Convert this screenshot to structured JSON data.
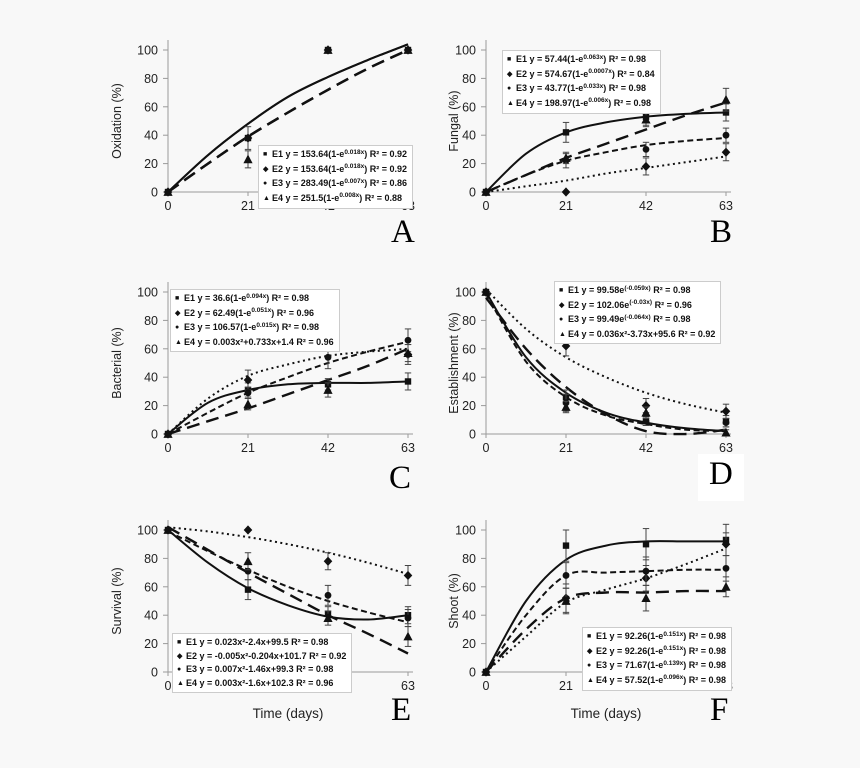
{
  "figure": {
    "x_ticks": [
      0,
      21,
      42,
      63
    ],
    "y_ticks": [
      0,
      20,
      40,
      60,
      80,
      100
    ],
    "curve_x": [
      0,
      10.5,
      21,
      31.5,
      42,
      52.5,
      63
    ],
    "x_axis_label": "Time (days)",
    "line_color": "#111111",
    "axis_color": "#9a9a9a",
    "background": "#f8f8f8",
    "legend_background": "#ffffff"
  },
  "chart_data": [
    {
      "panel": "A",
      "type": "line",
      "ylabel": "Oxidation (%)",
      "xlabel": "",
      "x": [
        0,
        21,
        42,
        63
      ],
      "ylim": [
        0,
        100
      ],
      "series": [
        {
          "label": "E1",
          "marker": "square",
          "line": "solid",
          "eq_pre": "y = 153.64(1-e",
          "eq_sup": "0.018x",
          "eq_post": ") R² = 0.92",
          "values": [
            0,
            38,
            100,
            100
          ],
          "errors": [
            0,
            8,
            0,
            0
          ],
          "curve": [
            0,
            26,
            48,
            67,
            81,
            93,
            104
          ]
        },
        {
          "label": "E2",
          "marker": "diamond",
          "line": "solid",
          "eq_pre": "y = 153.64(1-e",
          "eq_sup": "0.018x",
          "eq_post": ") R² = 0.92",
          "values": [
            0,
            38,
            100,
            100
          ],
          "errors": [
            0,
            0,
            0,
            0
          ],
          "curve": [
            0,
            26,
            48,
            67,
            81,
            93,
            104
          ]
        },
        {
          "label": "E3",
          "marker": "circle",
          "line": "longdash",
          "eq_pre": "y = 283.49(1-e",
          "eq_sup": "0.007x",
          "eq_post": ") R² = 0.86",
          "values": [
            0,
            38,
            100,
            100
          ],
          "errors": [
            0,
            0,
            0,
            0
          ],
          "curve": [
            0,
            20,
            39,
            56,
            72,
            87,
            100
          ]
        },
        {
          "label": "E4",
          "marker": "triangle",
          "line": "longdash",
          "eq_pre": "y = 251.5(1-e",
          "eq_sup": "0.008x",
          "eq_post": ") R² = 0.88",
          "values": [
            0,
            23,
            100,
            100
          ],
          "errors": [
            0,
            6,
            0,
            0
          ],
          "curve": [
            0,
            20,
            39,
            56,
            72,
            87,
            100
          ]
        }
      ]
    },
    {
      "panel": "B",
      "type": "line",
      "ylabel": "Fungal (%)",
      "xlabel": "",
      "x": [
        0,
        21,
        42,
        63
      ],
      "ylim": [
        0,
        100
      ],
      "series": [
        {
          "label": "E1",
          "marker": "square",
          "line": "solid",
          "eq_pre": "y = 57.44(1-e",
          "eq_sup": "0.063x",
          "eq_post": ") R² = 0.98",
          "values": [
            0,
            42,
            53,
            56
          ],
          "errors": [
            0,
            7,
            6,
            6
          ],
          "curve": [
            0,
            27,
            42,
            49,
            53,
            55,
            56
          ]
        },
        {
          "label": "E2",
          "marker": "diamond",
          "line": "dotted",
          "eq_pre": "y = 574.67(1-e",
          "eq_sup": "0.0007x",
          "eq_post": ") R² = 0.84",
          "values": [
            0,
            0,
            18,
            28
          ],
          "errors": [
            0,
            0,
            6,
            6
          ],
          "curve": [
            0,
            4,
            8,
            13,
            17,
            21,
            25
          ]
        },
        {
          "label": "E3",
          "marker": "circle",
          "line": "shortdash",
          "eq_pre": "y = 43.77(1-e",
          "eq_sup": "0.033x",
          "eq_post": ") R² = 0.98",
          "values": [
            0,
            22,
            30,
            40
          ],
          "errors": [
            0,
            5,
            5,
            5
          ],
          "curve": [
            0,
            12,
            22,
            28,
            33,
            36,
            38
          ]
        },
        {
          "label": "E4",
          "marker": "triangle",
          "line": "longdash",
          "eq_pre": "y = 198.97(1-e",
          "eq_sup": "0.006x",
          "eq_post": ") R² = 0.98",
          "values": [
            0,
            24,
            51,
            65
          ],
          "errors": [
            0,
            4,
            5,
            8
          ],
          "curve": [
            0,
            12,
            24,
            34,
            44,
            54,
            63
          ]
        }
      ]
    },
    {
      "panel": "C",
      "type": "line",
      "ylabel": "Bacterial (%)",
      "xlabel": "",
      "x": [
        0,
        21,
        42,
        63
      ],
      "ylim": [
        0,
        100
      ],
      "series": [
        {
          "label": "E1",
          "marker": "square",
          "line": "solid",
          "eq_pre": "y = 36.6(1-e",
          "eq_sup": "0.094x",
          "eq_post": ") R² = 0.98",
          "values": [
            0,
            31,
            35,
            37
          ],
          "errors": [
            0,
            5,
            4,
            6
          ],
          "curve": [
            0,
            22,
            31,
            35,
            36,
            36,
            37
          ]
        },
        {
          "label": "E2",
          "marker": "diamond",
          "line": "dotted",
          "eq_pre": "y = 62.49(1-e",
          "eq_sup": "0.051x",
          "eq_post": ") R² = 0.96",
          "values": [
            0,
            38,
            62,
            56
          ],
          "errors": [
            0,
            7,
            7,
            7
          ],
          "curve": [
            0,
            25,
            41,
            49,
            55,
            58,
            60
          ]
        },
        {
          "label": "E3",
          "marker": "circle",
          "line": "shortdash",
          "eq_pre": "y = 106.57(1-e",
          "eq_sup": "0.015x",
          "eq_post": ") R² = 0.98",
          "values": [
            0,
            29,
            54,
            66
          ],
          "errors": [
            0,
            4,
            8,
            8
          ],
          "curve": [
            0,
            15,
            29,
            40,
            50,
            58,
            65
          ]
        },
        {
          "label": "E4",
          "marker": "triangle",
          "line": "longdash",
          "eq_pre": "y = 0.003x²+0.733x+1.4 R² = 0.96",
          "eq_sup": "",
          "eq_post": "",
          "values": [
            0,
            21,
            31,
            57
          ],
          "errors": [
            0,
            4,
            5,
            6
          ],
          "curve": [
            0,
            9,
            18,
            28,
            38,
            48,
            60
          ]
        }
      ]
    },
    {
      "panel": "D",
      "type": "line",
      "ylabel": "Establishment (%)",
      "xlabel": "",
      "x": [
        0,
        21,
        42,
        63
      ],
      "ylim": [
        0,
        100
      ],
      "series": [
        {
          "label": "E1",
          "marker": "square",
          "line": "solid",
          "eq_pre": "y = 99.58e",
          "eq_sup": "(-0.059x)",
          "eq_post": " R² = 0.98",
          "values": [
            100,
            26,
            9,
            9
          ],
          "errors": [
            0,
            5,
            3,
            4
          ],
          "curve": [
            100,
            54,
            29,
            15,
            8,
            4,
            2
          ]
        },
        {
          "label": "E2",
          "marker": "diamond",
          "line": "dotted",
          "eq_pre": "y = 102.06e",
          "eq_sup": "(-0.03x)",
          "eq_post": " R² = 0.96",
          "values": [
            100,
            62,
            20,
            16
          ],
          "errors": [
            0,
            7,
            5,
            5
          ],
          "curve": [
            102,
            74,
            54,
            40,
            29,
            21,
            15
          ]
        },
        {
          "label": "E3",
          "marker": "circle",
          "line": "shortdash",
          "eq_pre": "y = 99.49e",
          "eq_sup": "(-0.064x)",
          "eq_post": " R² = 0.98",
          "values": [
            100,
            22,
            9,
            8
          ],
          "errors": [
            0,
            6,
            3,
            3
          ],
          "curve": [
            99,
            51,
            26,
            13,
            7,
            3,
            2
          ]
        },
        {
          "label": "E4",
          "marker": "triangle",
          "line": "longdash",
          "eq_pre": "y = 0.036x²-3.73x+95.6 R² = 0.92",
          "eq_sup": "",
          "eq_post": "",
          "values": [
            100,
            19,
            15,
            1
          ],
          "errors": [
            0,
            4,
            4,
            2
          ],
          "curve": [
            96,
            60,
            33,
            14,
            2,
            0,
            3
          ]
        }
      ]
    },
    {
      "panel": "E",
      "type": "line",
      "ylabel": "Survival (%)",
      "xlabel": "Time (days)",
      "x": [
        0,
        21,
        42,
        63
      ],
      "ylim": [
        0,
        100
      ],
      "series": [
        {
          "label": "E1",
          "marker": "square",
          "line": "solid",
          "eq_pre": "y = 0.023x²-2.4x+99.5 R² = 0.98",
          "eq_sup": "",
          "eq_post": "",
          "values": [
            100,
            58,
            41,
            40
          ],
          "errors": [
            0,
            7,
            5,
            6
          ],
          "curve": [
            100,
            77,
            59,
            47,
            39,
            37,
            40
          ]
        },
        {
          "label": "E2",
          "marker": "diamond",
          "line": "dotted",
          "eq_pre": "y = -0.005x²-0.204x+101.7 R² = 0.92",
          "eq_sup": "",
          "eq_post": "",
          "values": [
            100,
            100,
            78,
            68
          ],
          "errors": [
            0,
            0,
            6,
            7
          ],
          "curve": [
            102,
            99,
            95,
            90,
            84,
            77,
            69
          ]
        },
        {
          "label": "E3",
          "marker": "circle",
          "line": "shortdash",
          "eq_pre": "y = 0.007x²-1.46x+99.3 R² = 0.98",
          "eq_sup": "",
          "eq_post": "",
          "values": [
            100,
            71,
            54,
            38
          ],
          "errors": [
            0,
            6,
            7,
            6
          ],
          "curve": [
            99,
            85,
            72,
            60,
            50,
            42,
            35
          ]
        },
        {
          "label": "E4",
          "marker": "triangle",
          "line": "longdash",
          "eq_pre": "y = 0.003x²-1.6x+102.3 R² = 0.96",
          "eq_sup": "",
          "eq_post": "",
          "values": [
            100,
            78,
            38,
            25
          ],
          "errors": [
            0,
            6,
            5,
            7
          ],
          "curve": [
            102,
            86,
            70,
            55,
            40,
            27,
            13
          ]
        }
      ]
    },
    {
      "panel": "F",
      "type": "line",
      "ylabel": "Shoot (%)",
      "xlabel": "Time (days)",
      "x": [
        0,
        21,
        42,
        63
      ],
      "ylim": [
        0,
        100
      ],
      "series": [
        {
          "label": "E1",
          "marker": "square",
          "line": "solid",
          "eq_pre": "y = 92.26(1-e",
          "eq_sup": "0.151x",
          "eq_post": ") R² = 0.98",
          "values": [
            0,
            89,
            90,
            93
          ],
          "errors": [
            0,
            11,
            11,
            11
          ],
          "curve": [
            0,
            50,
            79,
            89,
            92,
            92,
            92
          ]
        },
        {
          "label": "E2",
          "marker": "diamond",
          "line": "dotted",
          "eq_pre": "y = 92.26(1-e",
          "eq_sup": "0.151x",
          "eq_post": ") R² = 0.98",
          "values": [
            0,
            52,
            66,
            90
          ],
          "errors": [
            0,
            10,
            9,
            8
          ],
          "curve": [
            0,
            25,
            49,
            58,
            66,
            76,
            87
          ]
        },
        {
          "label": "E3",
          "marker": "circle",
          "line": "shortdash",
          "eq_pre": "y = 71.67(1-e",
          "eq_sup": "0.139x",
          "eq_post": ") R² = 0.98",
          "values": [
            0,
            68,
            71,
            73
          ],
          "errors": [
            0,
            9,
            10,
            9
          ],
          "curve": [
            0,
            40,
            68,
            70,
            71,
            72,
            72
          ]
        },
        {
          "label": "E4",
          "marker": "triangle",
          "line": "longdash",
          "eq_pre": "y = 57.52(1-e",
          "eq_sup": "0.096x",
          "eq_post": ") R² = 0.98",
          "values": [
            0,
            50,
            52,
            60
          ],
          "errors": [
            0,
            9,
            9,
            7
          ],
          "curve": [
            0,
            30,
            52,
            56,
            56,
            57,
            57
          ]
        }
      ]
    }
  ]
}
